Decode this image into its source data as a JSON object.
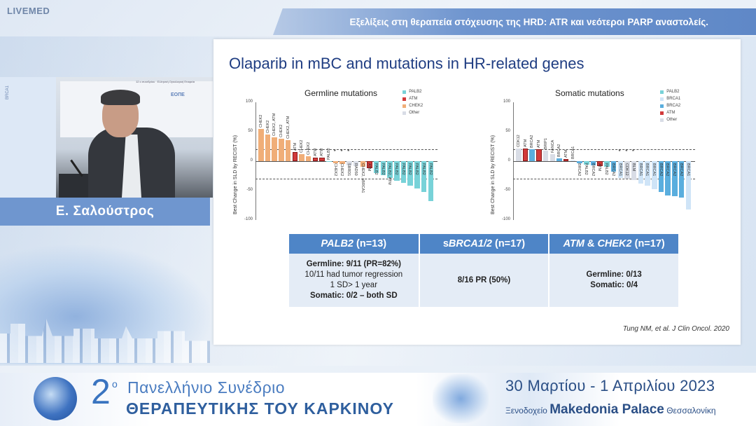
{
  "brand": {
    "logo_text": "LIVEMED"
  },
  "header": {
    "title": "Εξελίξεις στη θεραπεία στόχευσης της HRD: ATR και νεότεροι PARP αναστολείς."
  },
  "video": {
    "speaker_name": "Ε. Σαλούστρος",
    "banner_text": "12 ο συνεδρίου · Ελληνική Ογκολογική Εταιρεία",
    "banner_brand": "ΕΟΠΕ",
    "side_text": "BRCA1"
  },
  "slide": {
    "title": "Olaparib in mBC and mutations in HR-related genes",
    "citation": "Tung NM, et al. J Clin Oncol. 2020"
  },
  "colors": {
    "PALB2": "#78d2d8",
    "ATM": "#d23a3a",
    "CHEK2": "#f0ae78",
    "Other": "#d9dde6",
    "BRCA1": "#cfe4f7",
    "BRCA2": "#5aaede",
    "CDK12": "#d9dde6"
  },
  "chart_data": [
    {
      "type": "bar",
      "title": "Germline mutations",
      "ylabel": "Best Change in SLD by RECIST (%)",
      "ylim": [
        -100,
        100
      ],
      "yticks": [
        "100",
        "50",
        "0",
        "-50",
        "-100"
      ],
      "reference_lines": [
        20,
        -30
      ],
      "legend": [
        "PALB2",
        "ATM",
        "CHEK2",
        "Other"
      ],
      "categories": [
        "CHEK2",
        "CHEK2",
        "CHEK2, ATM",
        "CHEK2",
        "CHEK2, ATM",
        "ATM",
        "CHEK2",
        "CHEK2",
        "ATM",
        "ATM",
        "PALB2",
        "CHEK2",
        "CHEK2",
        "SBRD1",
        "RAD50",
        "CHEK2, sBRCA1",
        "ATM",
        "PALB2",
        "PALB2",
        "PALB2, ATM",
        "PALB2",
        "PALB2",
        "PALB2",
        "PALB2",
        "PALB2",
        "PALB2"
      ],
      "values": [
        55,
        45,
        40,
        38,
        36,
        15,
        12,
        8,
        6,
        6,
        0,
        -3,
        -5,
        -7,
        -8,
        -10,
        -12,
        -20,
        -24,
        -28,
        -33,
        -37,
        -42,
        -46,
        -52,
        -68
      ],
      "series_group": [
        "CHEK2",
        "CHEK2",
        "CHEK2",
        "CHEK2",
        "CHEK2",
        "ATM",
        "CHEK2",
        "CHEK2",
        "ATM",
        "ATM",
        "PALB2",
        "CHEK2",
        "CHEK2",
        "Other",
        "Other",
        "CHEK2",
        "ATM",
        "PALB2",
        "PALB2",
        "PALB2",
        "PALB2",
        "PALB2",
        "PALB2",
        "PALB2",
        "PALB2",
        "PALB2"
      ],
      "annotations": [
        {
          "index": 11,
          "text": "*"
        },
        {
          "index": 12,
          "text": "*"
        },
        {
          "index": 13,
          "text": "*"
        }
      ]
    },
    {
      "type": "bar",
      "title": "Somatic mutations",
      "ylabel": "Best Change in SLD by RECIST (%)",
      "ylim": [
        -100,
        100
      ],
      "yticks": [
        "100",
        "50",
        "0",
        "-50",
        "-100"
      ],
      "reference_lines": [
        20,
        -30
      ],
      "legend": [
        "PALB2",
        "BRCA1",
        "BRCA2",
        "ATM",
        "Other"
      ],
      "categories": [
        "CDK12",
        "ATM",
        "BRCA2",
        "ATM",
        "BRIP1",
        "FANCA",
        "BRCA2",
        "ATM",
        "BRCA1",
        "BRCA2",
        "PALB2",
        "BRCA2",
        "ATM",
        "PALB2",
        "BRCA2",
        "BRCA1",
        "CDK12",
        "BLM",
        "BRCA1",
        "BRCA1",
        "BRCA1",
        "BRCA2",
        "BRCA2",
        "BRCA2",
        "BRCA2",
        "BRCA1"
      ],
      "values": [
        22,
        22,
        20,
        20,
        18,
        12,
        5,
        3,
        1,
        -4,
        -6,
        -7,
        -8,
        -10,
        -18,
        -28,
        -30,
        -32,
        -38,
        -42,
        -48,
        -52,
        -58,
        -60,
        -62,
        -82
      ],
      "series_group": [
        "Other",
        "ATM",
        "BRCA2",
        "ATM",
        "Other",
        "Other",
        "BRCA2",
        "ATM",
        "BRCA1",
        "BRCA2",
        "PALB2",
        "BRCA2",
        "ATM",
        "PALB2",
        "BRCA2",
        "BRCA1",
        "Other",
        "Other",
        "BRCA1",
        "BRCA1",
        "BRCA1",
        "BRCA2",
        "BRCA2",
        "BRCA2",
        "BRCA2",
        "BRCA1"
      ],
      "annotations": [
        {
          "index": 15,
          "text": "*"
        },
        {
          "index": 16,
          "text": "*"
        },
        {
          "index": 17,
          "text": "*"
        }
      ]
    }
  ],
  "summary_table": {
    "headers": {
      "col1_gene": "PALB2",
      "col1_n": " (n=13)",
      "col2_pre": "s",
      "col2_gene": "BRCA1/2",
      "col2_n": " (n=17)",
      "col3_gene1": "ATM",
      "col3_amp": " & ",
      "col3_gene2": "CHEK2",
      "col3_n": " (n=17)"
    },
    "col1": [
      "Germline: 9/11 (PR=82%)",
      "10/11 had tumor regression",
      "1 SD> 1 year",
      "Somatic: 0/2 – both SD"
    ],
    "col2": [
      "8/16 PR (50%)"
    ],
    "col3": [
      "Germline: 0/13",
      "Somatic: 0/4"
    ]
  },
  "footer": {
    "edition_number": "2",
    "edition_sup": "ο",
    "line1": "Πανελλήνιο Συνέδριο",
    "line2": "ΘΕΡΑΠΕΥΤΙΚΗΣ ΤΟΥ ΚΑΡΚΙΝΟΥ",
    "date": "30 Μαρτίου  -  1 Απριλίου 2023",
    "venue_prefix": "Ξενοδοχείο ",
    "venue_name": "Makedonia Palace",
    "venue_city": " Θεσσαλονίκη"
  }
}
